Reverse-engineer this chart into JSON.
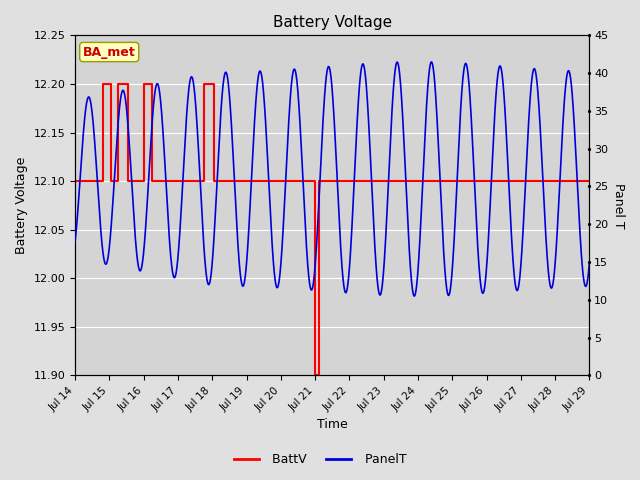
{
  "title": "Battery Voltage",
  "xlabel": "Time",
  "ylabel_left": "Battery Voltage",
  "ylabel_right": "Panel T",
  "annotation": "BA_met",
  "ylim_left": [
    11.9,
    12.25
  ],
  "ylim_right": [
    0,
    45
  ],
  "xlim": [
    0,
    15
  ],
  "fig_bg_color": "#e0e0e0",
  "plot_bg_color": "#d4d4d4",
  "batt_color": "#ff0000",
  "panel_color": "#0000dd",
  "grid_color": "#ffffff",
  "xtick_labels": [
    "Jul 14",
    "Jul 15",
    "Jul 16",
    "Jul 17",
    "Jul 18",
    "Jul 19",
    "Jul 20",
    "Jul 21",
    "Jul 22",
    "Jul 23",
    "Jul 24",
    "Jul 25",
    "Jul 26",
    "Jul 27",
    "Jul 28",
    "Jul 29"
  ],
  "ytick_left": [
    11.9,
    11.95,
    12.0,
    12.05,
    12.1,
    12.15,
    12.2,
    12.25
  ],
  "ytick_right": [
    0,
    5,
    10,
    15,
    20,
    25,
    30,
    35,
    40,
    45
  ],
  "panel_mid": 25.0,
  "panel_amp": 14.0,
  "panel_phase": 1.5707963,
  "figsize": [
    6.4,
    4.8
  ],
  "dpi": 100
}
